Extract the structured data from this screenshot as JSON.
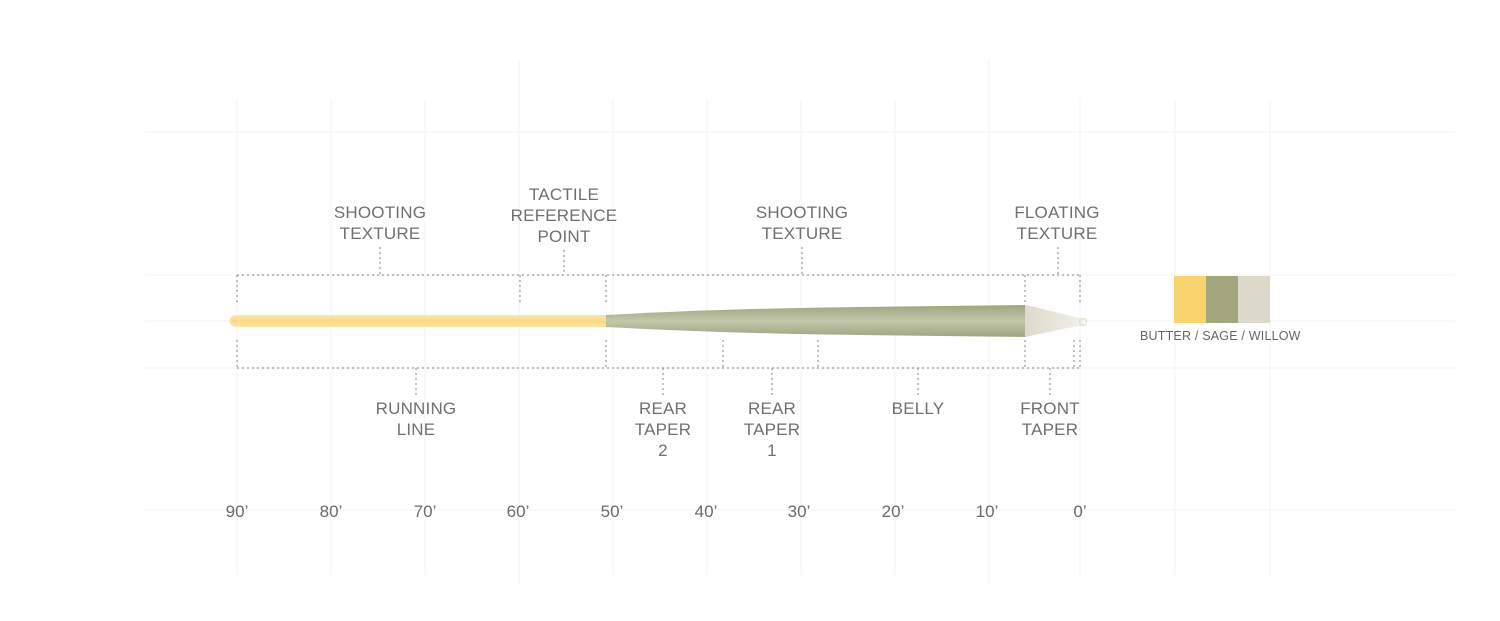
{
  "top_labels": {
    "shooting_texture_left": [
      "SHOOTING",
      "TEXTURE"
    ],
    "tactile_reference_point": [
      "TACTILE",
      "REFERENCE",
      "POINT"
    ],
    "shooting_texture_right": [
      "SHOOTING",
      "TEXTURE"
    ],
    "floating_texture": [
      "FLOATING",
      "TEXTURE"
    ]
  },
  "bottom_labels": {
    "running_line": [
      "RUNNING",
      "LINE"
    ],
    "rear_taper_2": [
      "REAR",
      "TAPER",
      "2"
    ],
    "rear_taper_1": [
      "REAR",
      "TAPER",
      "1"
    ],
    "belly": [
      "BELLY"
    ],
    "front_taper": [
      "FRONT",
      "TAPER"
    ]
  },
  "axis_ticks": [
    "90’",
    "80’",
    "70’",
    "60’",
    "50’",
    "40’",
    "30’",
    "20’",
    "10’",
    "0’"
  ],
  "legend": {
    "label": "BUTTER / SAGE / WILLOW",
    "colors": {
      "butter": "#f8d36e",
      "sage": "#a3a77f",
      "willow": "#dcd9cb"
    }
  },
  "colors": {
    "running_line": "#fbe1a0",
    "head": "#b4b898",
    "tip": "#e6e4d8",
    "text": "#707070",
    "dots": "#9a9a9a"
  }
}
